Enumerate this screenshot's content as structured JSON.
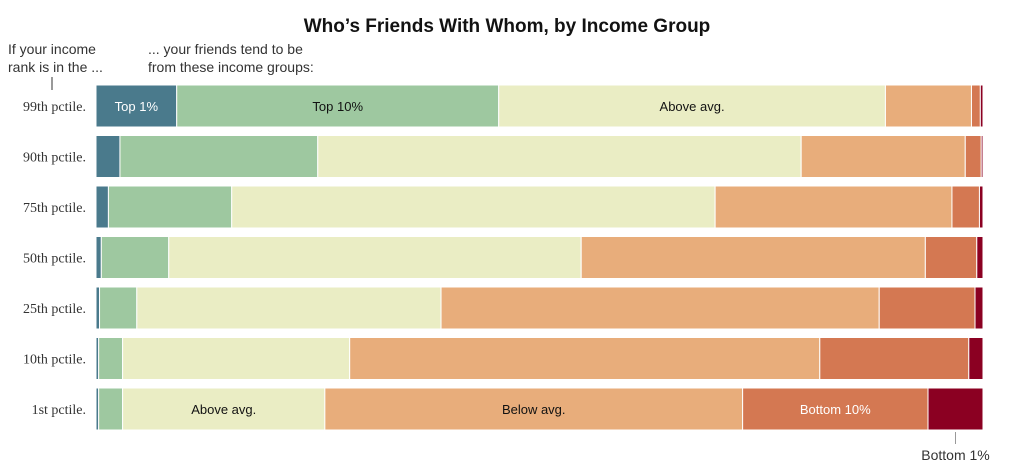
{
  "chart_data": {
    "type": "bar",
    "orientation": "horizontal",
    "stacked": true,
    "percent_stacked": true,
    "title": "Who’s Friends With Whom, by Income Group",
    "row_header": [
      "If your income",
      "rank is in the ..."
    ],
    "segment_header": [
      "... your friends tend to be",
      "from these income groups:"
    ],
    "groups": [
      "Top 1%",
      "Top 10%",
      "Above avg.",
      "Below avg.",
      "Bottom 10%",
      "Bottom 1%"
    ],
    "colors": [
      "#4a7a8c",
      "#9ec8a0",
      "#eaedc4",
      "#e8ad7b",
      "#d47852",
      "#8b0022"
    ],
    "categories": [
      "99th pctile.",
      "90th pctile.",
      "75th pctile.",
      "50th pctile.",
      "25th pctile.",
      "10th pctile.",
      "1st pctile."
    ],
    "rows": [
      [
        9.1,
        36.3,
        43.6,
        9.7,
        1.0,
        0.3
      ],
      [
        2.7,
        22.3,
        54.5,
        18.5,
        1.8,
        0.2
      ],
      [
        1.4,
        13.9,
        54.5,
        26.7,
        3.1,
        0.4
      ],
      [
        0.6,
        7.6,
        46.5,
        38.8,
        5.8,
        0.7
      ],
      [
        0.4,
        4.2,
        34.3,
        49.4,
        10.8,
        0.9
      ],
      [
        0.3,
        2.7,
        25.6,
        53.0,
        16.8,
        1.6
      ],
      [
        0.3,
        2.7,
        22.8,
        47.1,
        20.9,
        6.2
      ]
    ],
    "segment_labels": [
      {
        "row": 0,
        "segment": 0,
        "text": "Top 1%"
      },
      {
        "row": 0,
        "segment": 1,
        "text": "Top 10%"
      },
      {
        "row": 0,
        "segment": 2,
        "text": "Above avg."
      },
      {
        "row": 6,
        "segment": 2,
        "text": "Above avg."
      },
      {
        "row": 6,
        "segment": 3,
        "text": "Below avg."
      },
      {
        "row": 6,
        "segment": 4,
        "text": "Bottom 10%"
      }
    ],
    "callout": {
      "row": 6,
      "segment": 5,
      "text": "Bottom 1%"
    },
    "xlim": [
      0,
      100
    ],
    "grid": false,
    "legend": "none"
  }
}
